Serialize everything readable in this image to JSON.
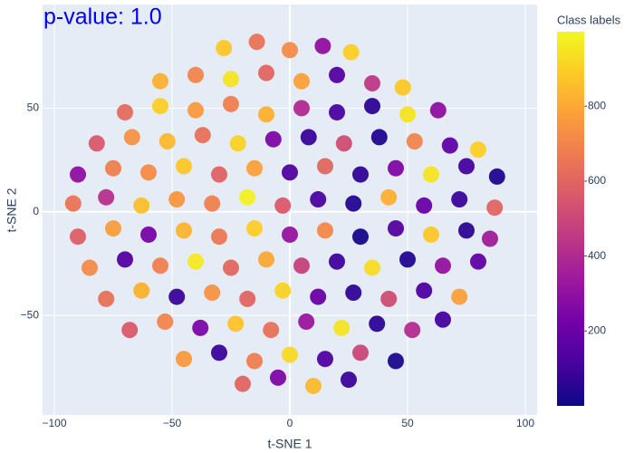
{
  "chart_data": {
    "type": "scatter",
    "title": "p-value: 1.0",
    "x_label": "t-SNE 1",
    "y_label": "t-SNE 2",
    "xlim": [
      -105,
      105
    ],
    "ylim": [
      -98,
      100
    ],
    "xticks": [
      {
        "value": -100,
        "label": "−100"
      },
      {
        "value": -50,
        "label": "−50"
      },
      0,
      50,
      100
    ],
    "yticks": [
      {
        "value": -50,
        "label": "−50"
      },
      0,
      50
    ],
    "grid": true,
    "x": [
      -28,
      -14,
      0,
      14,
      26,
      -55,
      -40,
      -25,
      -10,
      5,
      20,
      35,
      48,
      -70,
      -55,
      -40,
      -25,
      -10,
      5,
      20,
      35,
      50,
      63,
      -82,
      -67,
      -52,
      -37,
      -22,
      -7,
      8,
      23,
      38,
      53,
      68,
      80,
      -90,
      -75,
      -60,
      -45,
      -30,
      -15,
      0,
      15,
      30,
      45,
      60,
      75,
      88,
      -92,
      -78,
      -63,
      -48,
      -33,
      -18,
      -3,
      12,
      27,
      42,
      57,
      72,
      87,
      -90,
      -75,
      -60,
      -45,
      -30,
      -15,
      0,
      15,
      30,
      45,
      60,
      75,
      85,
      -85,
      -70,
      -55,
      -40,
      -25,
      -10,
      5,
      20,
      35,
      50,
      65,
      80,
      -78,
      -63,
      -48,
      -33,
      -18,
      -3,
      12,
      27,
      42,
      57,
      72,
      -68,
      -53,
      -38,
      -23,
      -8,
      7,
      22,
      37,
      52,
      65,
      -45,
      -30,
      -15,
      0,
      15,
      30,
      45,
      -20,
      -5,
      10,
      25
    ],
    "y": [
      79,
      82,
      78,
      80,
      77,
      63,
      66,
      64,
      67,
      63,
      66,
      62,
      60,
      48,
      51,
      49,
      52,
      47,
      50,
      48,
      51,
      47,
      49,
      33,
      36,
      34,
      37,
      33,
      35,
      36,
      33,
      36,
      34,
      32,
      30,
      18,
      21,
      19,
      22,
      18,
      21,
      19,
      22,
      18,
      21,
      18,
      22,
      17,
      4,
      7,
      3,
      6,
      4,
      7,
      3,
      6,
      4,
      7,
      3,
      6,
      2,
      -12,
      -8,
      -11,
      -9,
      -12,
      -8,
      -11,
      -9,
      -12,
      -8,
      -11,
      -9,
      -13,
      -27,
      -23,
      -26,
      -24,
      -27,
      -23,
      -26,
      -24,
      -27,
      -23,
      -26,
      -24,
      -42,
      -38,
      -41,
      -39,
      -42,
      -38,
      -41,
      -39,
      -42,
      -38,
      -41,
      -57,
      -53,
      -56,
      -54,
      -57,
      -53,
      -56,
      -54,
      -57,
      -52,
      -71,
      -68,
      -72,
      -69,
      -71,
      -68,
      -72,
      -83,
      -80,
      -84,
      -81
    ],
    "color_values": [
      880,
      650,
      720,
      300,
      900,
      820,
      700,
      950,
      600,
      780,
      150,
      450,
      880,
      620,
      900,
      760,
      680,
      820,
      400,
      120,
      60,
      950,
      300,
      560,
      740,
      850,
      640,
      910,
      250,
      90,
      520,
      40,
      700,
      180,
      900,
      300,
      680,
      720,
      880,
      590,
      780,
      140,
      610,
      70,
      260,
      950,
      110,
      30,
      650,
      420,
      860,
      750,
      690,
      980,
      560,
      130,
      45,
      820,
      200,
      90,
      600,
      580,
      770,
      240,
      830,
      660,
      900,
      320,
      710,
      20,
      150,
      880,
      60,
      350,
      720,
      150,
      690,
      960,
      610,
      800,
      480,
      100,
      930,
      40,
      310,
      180,
      640,
      820,
      90,
      740,
      600,
      910,
      200,
      70,
      520,
      130,
      780,
      560,
      700,
      250,
      870,
      640,
      330,
      950,
      60,
      410,
      110,
      760,
      90,
      680,
      920,
      140,
      500,
      30,
      600,
      250,
      850,
      90
    ],
    "colorbar": {
      "title": "Class labels",
      "lim": [
        0,
        999
      ],
      "ticks": [
        200,
        400,
        600,
        800
      ],
      "colorscale": [
        "#0d0887",
        "#46039f",
        "#7201a8",
        "#9c179e",
        "#bd3786",
        "#d8576b",
        "#ed7953",
        "#fb9f3a",
        "#fdca26",
        "#f0f921"
      ]
    }
  }
}
